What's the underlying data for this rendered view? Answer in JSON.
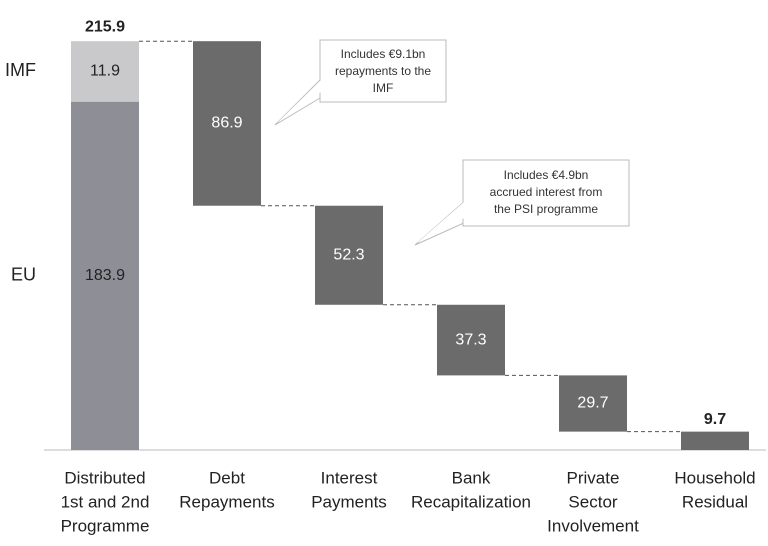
{
  "chart_data": {
    "type": "waterfall",
    "categories": [
      [
        "Distributed",
        "1st and 2nd",
        "Programme"
      ],
      [
        "Debt",
        "Repayments"
      ],
      [
        "Interest",
        "Payments"
      ],
      [
        "Bank",
        "Recapitalization"
      ],
      [
        "Private",
        "Sector",
        "Involvement"
      ],
      [
        "Household",
        "Residual"
      ]
    ],
    "values": [
      215.9,
      86.9,
      52.3,
      37.3,
      29.7,
      9.7
    ],
    "stack": [
      {
        "name": "EU",
        "value": 183.9,
        "color": "#8e8e97"
      },
      {
        "name": "IMF",
        "value": 11.9,
        "color": "#c9c9cb"
      }
    ],
    "total_color": "#c9c9cb",
    "step_color": "#6b6b6b",
    "ylim": [
      0,
      216
    ],
    "annotations": [
      {
        "lines": [
          "Includes €9.1bn",
          "repayments to the",
          "IMF"
        ]
      },
      {
        "lines": [
          "Includes €4.9bn",
          "accrued interest from",
          "the PSI programme"
        ]
      }
    ]
  }
}
